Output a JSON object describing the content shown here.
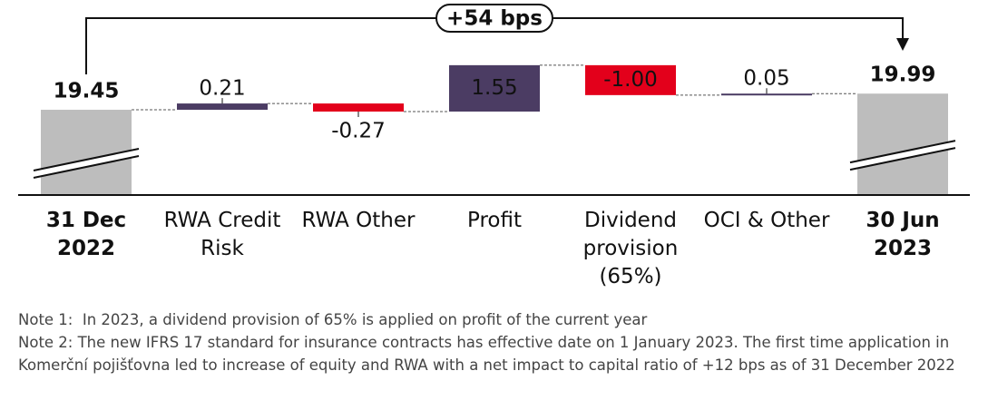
{
  "chart_data": {
    "type": "waterfall",
    "categories": [
      "31 Dec 2022",
      "RWA Credit Risk",
      "RWA Other",
      "Profit",
      "Dividend provision (65%)",
      "OCI & Other",
      "30 Jun 2023"
    ],
    "values": [
      19.45,
      0.21,
      -0.27,
      1.55,
      -1.0,
      0.05,
      19.99
    ],
    "value_labels": [
      "19.45",
      "0.21",
      "-0.27",
      "1.55",
      "-1.00",
      "0.05",
      "19.99"
    ],
    "measure": [
      "absolute",
      "relative",
      "relative",
      "relative",
      "relative",
      "relative",
      "total"
    ],
    "colors": [
      "#bdbdbd",
      "#4b3c63",
      "#e3001b",
      "#4b3c63",
      "#e3001b",
      "#4b3c63",
      "#bdbdbd"
    ],
    "ylim": [
      16.6,
      21.3
    ],
    "broken_axis": true,
    "annotation": "+54 bps"
  },
  "notes": [
    "Note 1:  In 2023, a dividend provision of 65% is applied on profit of the current year",
    "Note 2: The new IFRS 17 standard for insurance contracts has effective date on 1 January 2023. The first time application in Komerční pojišťovna led to increase of equity and RWA with a net impact to capital ratio of +12 bps as of 31 December 2022"
  ]
}
